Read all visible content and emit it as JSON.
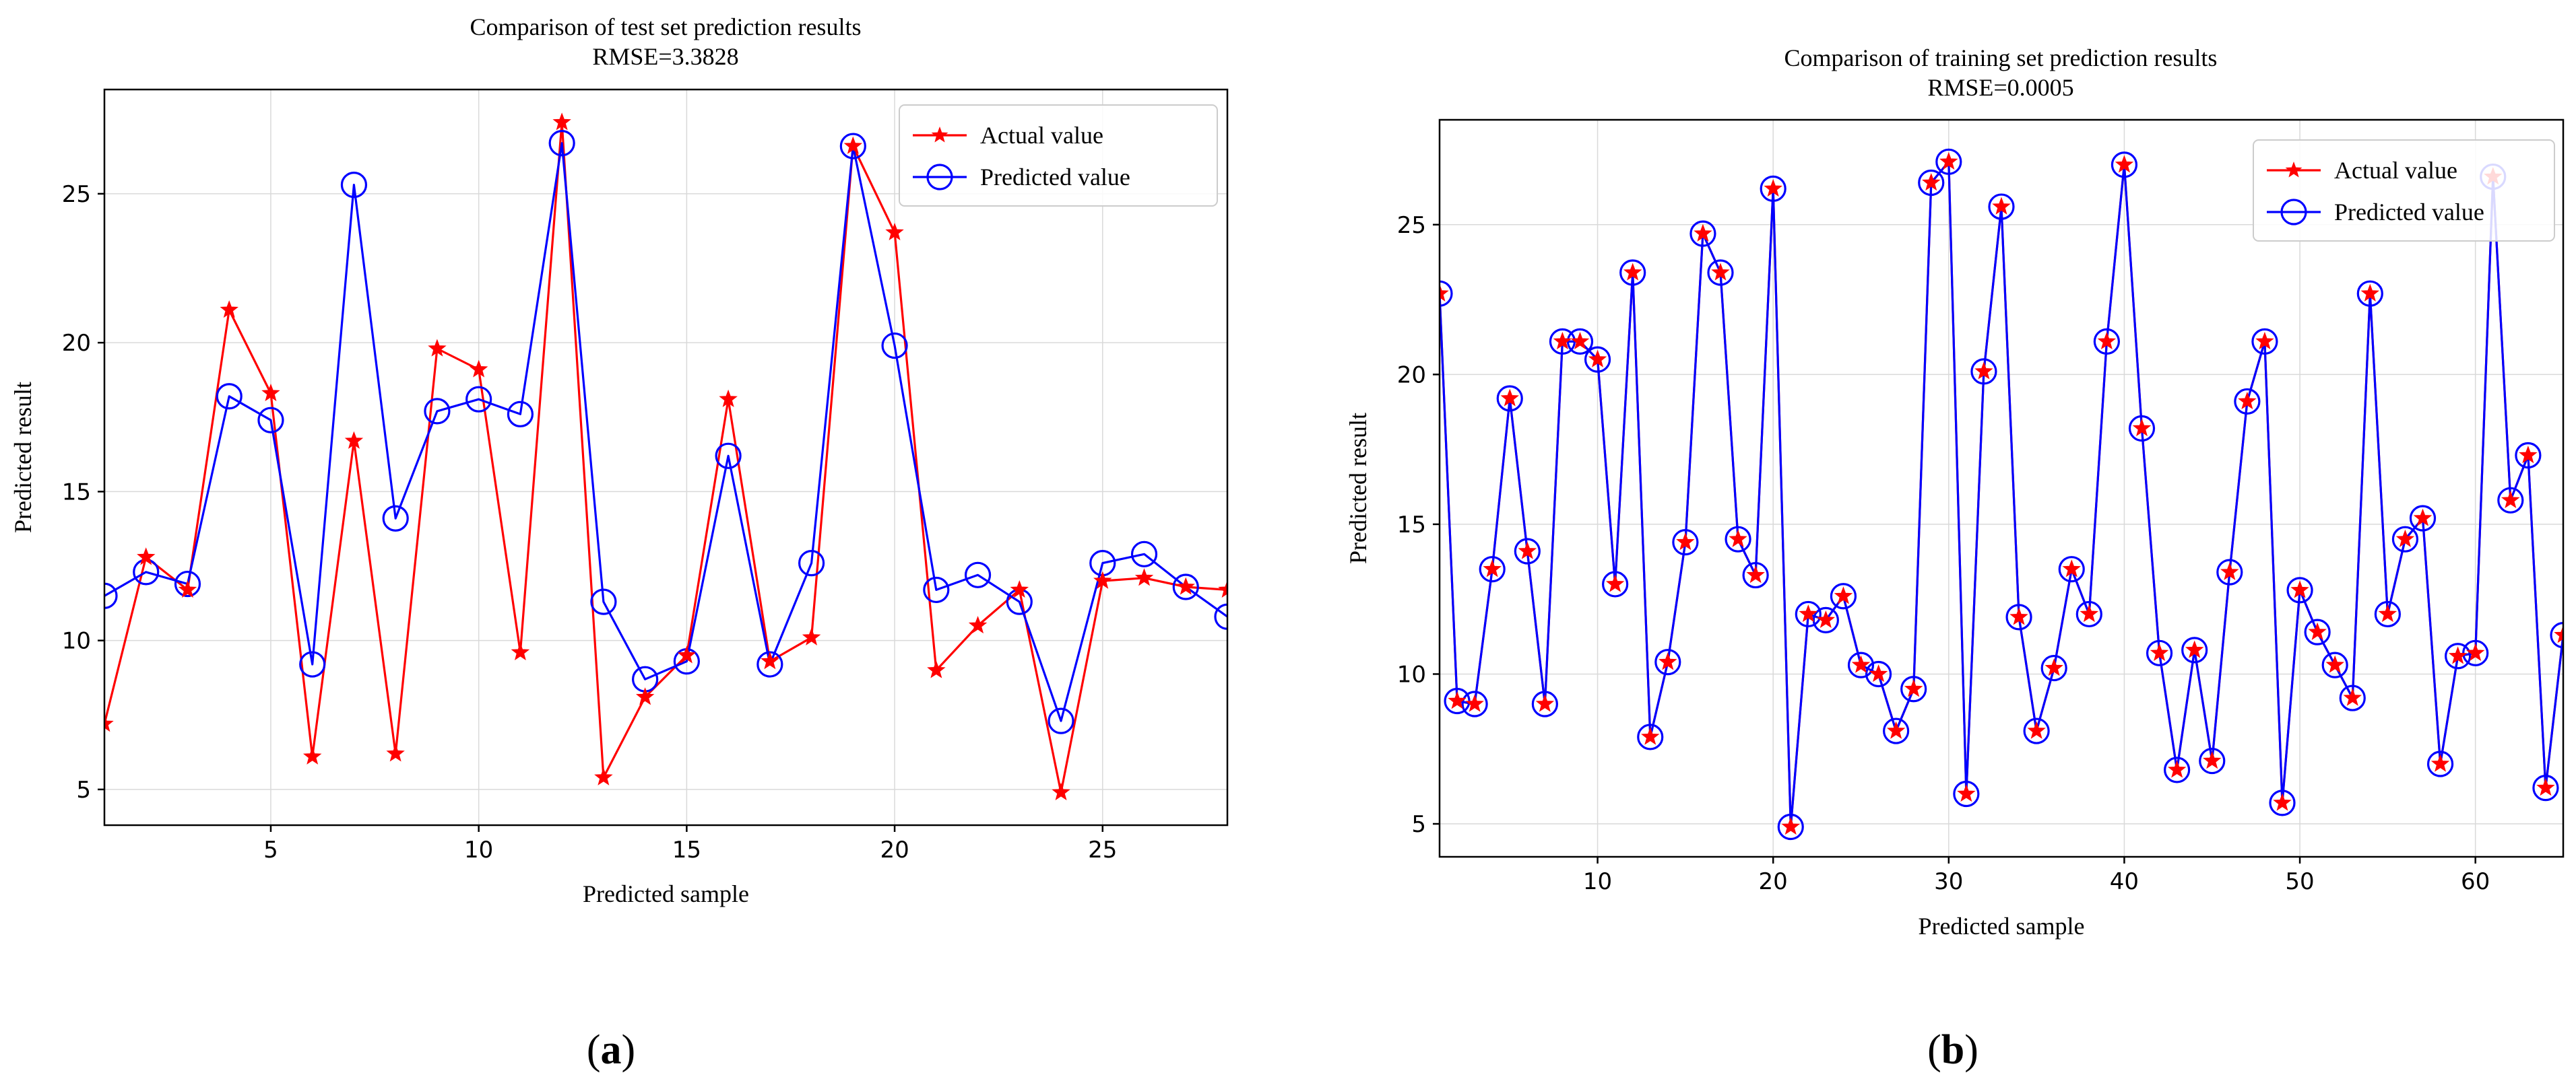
{
  "chart_data": [
    {
      "id": "a",
      "type": "line",
      "title": "Comparison of test set prediction results",
      "subtitle": "RMSE=3.3828",
      "xlabel": "Predicted sample",
      "ylabel": "Predicted result",
      "xlim": [
        1,
        28
      ],
      "ylim": [
        3.8,
        28.5
      ],
      "xticks": [
        5,
        10,
        15,
        20,
        25
      ],
      "yticks": [
        5,
        10,
        15,
        20,
        25
      ],
      "grid": true,
      "legend_position": "top-right",
      "caption_open": "(",
      "caption_letter": "a",
      "caption_close": ")",
      "x": [
        1,
        2,
        3,
        4,
        5,
        6,
        7,
        8,
        9,
        10,
        11,
        12,
        13,
        14,
        15,
        16,
        17,
        18,
        19,
        20,
        21,
        22,
        23,
        24,
        25,
        26,
        27,
        28
      ],
      "series": [
        {
          "name": "Actual value",
          "color": "#ff0000",
          "marker": "star",
          "values": [
            7.2,
            12.8,
            11.7,
            21.1,
            18.3,
            6.1,
            16.7,
            6.2,
            19.8,
            19.1,
            9.6,
            27.4,
            5.4,
            8.1,
            9.5,
            18.1,
            9.3,
            10.1,
            26.6,
            23.7,
            9.0,
            10.5,
            11.7,
            4.9,
            12.0,
            12.1,
            11.8,
            11.7
          ]
        },
        {
          "name": "Predicted value",
          "color": "#0000ff",
          "marker": "circle",
          "values": [
            11.5,
            12.3,
            11.9,
            18.2,
            17.4,
            9.2,
            25.3,
            14.1,
            17.7,
            18.1,
            17.6,
            26.7,
            11.3,
            8.7,
            9.3,
            16.2,
            9.2,
            12.6,
            26.6,
            19.9,
            11.7,
            12.2,
            11.3,
            7.3,
            12.6,
            12.9,
            11.8,
            10.8
          ]
        }
      ]
    },
    {
      "id": "b",
      "type": "line",
      "title": "Comparison of training set prediction results",
      "subtitle": "RMSE=0.0005",
      "xlabel": "Predicted sample",
      "ylabel": "Predicted result",
      "xlim": [
        1,
        65
      ],
      "ylim": [
        3.9,
        28.5
      ],
      "xticks": [
        10,
        20,
        30,
        40,
        50,
        60
      ],
      "yticks": [
        5,
        10,
        15,
        20,
        25
      ],
      "grid": true,
      "legend_position": "top-right",
      "caption_open": "(",
      "caption_letter": "b",
      "caption_close": ")",
      "x": [
        1,
        2,
        3,
        4,
        5,
        6,
        7,
        8,
        9,
        10,
        11,
        12,
        13,
        14,
        15,
        16,
        17,
        18,
        19,
        20,
        21,
        22,
        23,
        24,
        25,
        26,
        27,
        28,
        29,
        30,
        31,
        32,
        33,
        34,
        35,
        36,
        37,
        38,
        39,
        40,
        41,
        42,
        43,
        44,
        45,
        46,
        47,
        48,
        49,
        50,
        51,
        52,
        53,
        54,
        55,
        56,
        57,
        58,
        59,
        60,
        61,
        62,
        63,
        64,
        65
      ],
      "series": [
        {
          "name": "Actual value",
          "color": "#ff0000",
          "marker": "star",
          "values": [
            22.7,
            9.1,
            9.0,
            13.5,
            19.2,
            14.1,
            9.0,
            21.1,
            21.1,
            20.5,
            13.0,
            23.4,
            7.9,
            10.4,
            14.4,
            24.7,
            23.4,
            14.5,
            13.3,
            26.2,
            4.9,
            12.0,
            11.8,
            12.6,
            10.3,
            10.0,
            8.1,
            9.5,
            26.4,
            27.1,
            6.0,
            20.1,
            25.6,
            11.9,
            8.1,
            10.2,
            13.5,
            12.0,
            21.1,
            27.0,
            18.2,
            10.7,
            6.8,
            10.8,
            7.1,
            13.4,
            19.1,
            21.1,
            5.7,
            12.8,
            11.4,
            10.3,
            9.2,
            22.7,
            12.0,
            14.5,
            15.2,
            7.0,
            10.6,
            10.7,
            26.6,
            15.8,
            17.3,
            6.2,
            11.3
          ]
        },
        {
          "name": "Predicted value",
          "color": "#0000ff",
          "marker": "circle",
          "values": [
            22.7,
            9.1,
            9.0,
            13.5,
            19.2,
            14.1,
            9.0,
            21.1,
            21.1,
            20.5,
            13.0,
            23.4,
            7.9,
            10.4,
            14.4,
            24.7,
            23.4,
            14.5,
            13.3,
            26.2,
            4.9,
            12.0,
            11.8,
            12.6,
            10.3,
            10.0,
            8.1,
            9.5,
            26.4,
            27.1,
            6.0,
            20.1,
            25.6,
            11.9,
            8.1,
            10.2,
            13.5,
            12.0,
            21.1,
            27.0,
            18.2,
            10.7,
            6.8,
            10.8,
            7.1,
            13.4,
            19.1,
            21.1,
            5.7,
            12.8,
            11.4,
            10.3,
            9.2,
            22.7,
            12.0,
            14.5,
            15.2,
            7.0,
            10.6,
            10.7,
            26.6,
            15.8,
            17.3,
            6.2,
            11.3
          ]
        }
      ]
    }
  ]
}
